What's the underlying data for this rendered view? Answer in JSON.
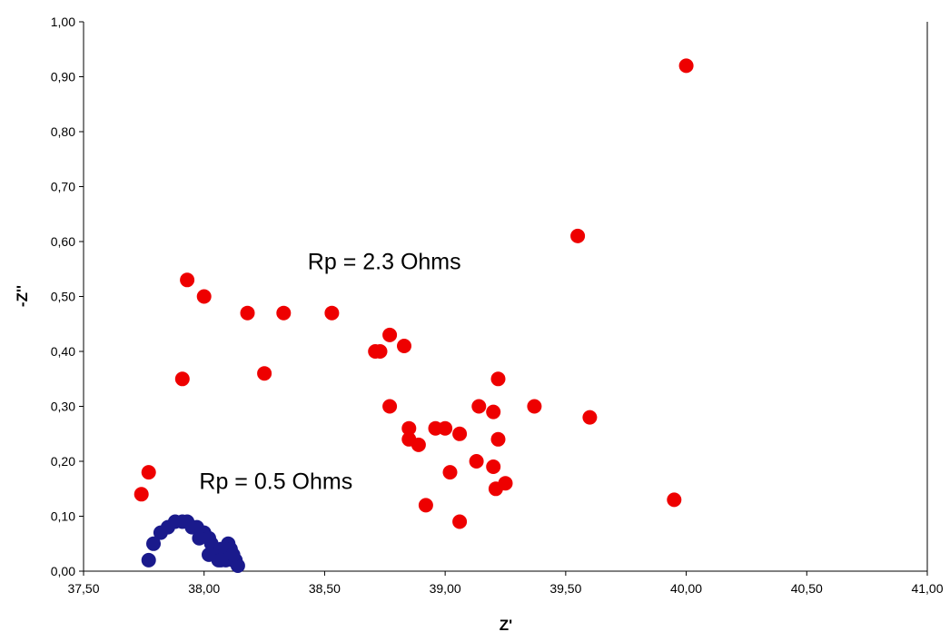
{
  "chart_data": {
    "type": "scatter",
    "title": "",
    "xlabel": "Z'",
    "ylabel": "-Z''",
    "xlim": [
      37.5,
      41.0
    ],
    "ylim": [
      0.0,
      1.0
    ],
    "xticks": [
      37.5,
      38.0,
      38.5,
      39.0,
      39.5,
      40.0,
      40.5,
      41.0
    ],
    "xtick_labels": [
      "37,50",
      "38,00",
      "38,50",
      "39,00",
      "39,50",
      "40,00",
      "40,50",
      "41,00"
    ],
    "yticks": [
      0.0,
      0.1,
      0.2,
      0.3,
      0.4,
      0.5,
      0.6,
      0.7,
      0.8,
      0.9,
      1.0
    ],
    "ytick_labels": [
      "0,00",
      "0,10",
      "0,20",
      "0,30",
      "0,40",
      "0,50",
      "0,60",
      "0,70",
      "0,80",
      "0,90",
      "1,00"
    ],
    "grid": false,
    "legend": "none",
    "series": [
      {
        "color": "#ee0000",
        "points": [
          [
            37.74,
            0.14
          ],
          [
            37.77,
            0.18
          ],
          [
            37.91,
            0.35
          ],
          [
            37.93,
            0.53
          ],
          [
            38.0,
            0.5
          ],
          [
            38.18,
            0.47
          ],
          [
            38.25,
            0.36
          ],
          [
            38.33,
            0.47
          ],
          [
            38.53,
            0.47
          ],
          [
            38.71,
            0.4
          ],
          [
            38.73,
            0.4
          ],
          [
            38.77,
            0.43
          ],
          [
            38.77,
            0.3
          ],
          [
            38.83,
            0.41
          ],
          [
            38.85,
            0.26
          ],
          [
            38.85,
            0.24
          ],
          [
            38.89,
            0.23
          ],
          [
            38.92,
            0.12
          ],
          [
            38.96,
            0.26
          ],
          [
            39.0,
            0.26
          ],
          [
            39.02,
            0.18
          ],
          [
            39.06,
            0.25
          ],
          [
            39.06,
            0.09
          ],
          [
            39.13,
            0.2
          ],
          [
            39.14,
            0.3
          ],
          [
            39.2,
            0.29
          ],
          [
            39.2,
            0.19
          ],
          [
            39.21,
            0.15
          ],
          [
            39.22,
            0.35
          ],
          [
            39.22,
            0.24
          ],
          [
            39.25,
            0.16
          ],
          [
            39.37,
            0.3
          ],
          [
            39.55,
            0.61
          ],
          [
            39.6,
            0.28
          ],
          [
            39.95,
            0.13
          ],
          [
            40.0,
            0.92
          ]
        ]
      },
      {
        "color": "#1a1a8c",
        "points": [
          [
            37.77,
            0.02
          ],
          [
            37.79,
            0.05
          ],
          [
            37.82,
            0.07
          ],
          [
            37.85,
            0.08
          ],
          [
            37.88,
            0.09
          ],
          [
            37.91,
            0.09
          ],
          [
            37.93,
            0.09
          ],
          [
            37.95,
            0.08
          ],
          [
            37.97,
            0.08
          ],
          [
            37.99,
            0.07
          ],
          [
            38.0,
            0.07
          ],
          [
            38.02,
            0.06
          ],
          [
            37.98,
            0.06
          ],
          [
            38.03,
            0.05
          ],
          [
            38.04,
            0.04
          ],
          [
            38.02,
            0.03
          ],
          [
            38.05,
            0.03
          ],
          [
            38.06,
            0.02
          ],
          [
            38.07,
            0.04
          ],
          [
            38.08,
            0.03
          ],
          [
            38.09,
            0.02
          ],
          [
            38.1,
            0.05
          ],
          [
            38.1,
            0.03
          ],
          [
            38.11,
            0.04
          ],
          [
            38.12,
            0.02
          ],
          [
            38.13,
            0.02
          ],
          [
            38.14,
            0.01
          ],
          [
            38.09,
            0.04
          ],
          [
            38.07,
            0.02
          ],
          [
            38.12,
            0.03
          ]
        ]
      }
    ],
    "annotations": [
      {
        "text": "Rp = 2.3 Ohms",
        "x": 38.43,
        "y": 0.55
      },
      {
        "text": "Rp = 0.5 Ohms",
        "x": 37.98,
        "y": 0.15
      }
    ]
  }
}
